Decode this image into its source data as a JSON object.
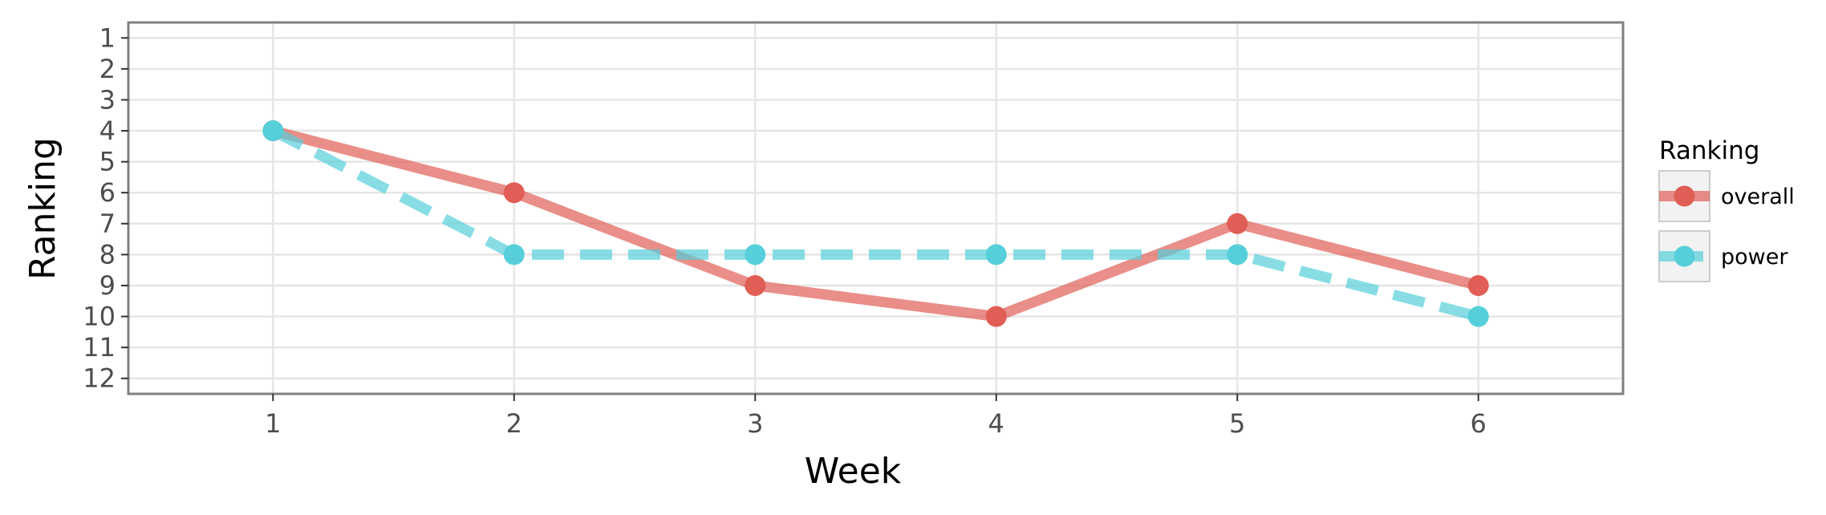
{
  "chart_data": {
    "type": "line",
    "xlabel": "Week",
    "ylabel": "Ranking",
    "x": [
      1,
      2,
      3,
      4,
      5,
      6
    ],
    "xlim": [
      0.4,
      6.6
    ],
    "ylim": [
      12.5,
      0.5
    ],
    "y_reversed": true,
    "x_ticks": [
      "1",
      "2",
      "3",
      "4",
      "5",
      "6"
    ],
    "y_ticks": [
      "1",
      "2",
      "3",
      "4",
      "5",
      "6",
      "7",
      "8",
      "9",
      "10",
      "11",
      "12"
    ],
    "grid": true,
    "legend": {
      "title": "Ranking",
      "placement": "right"
    },
    "series": [
      {
        "name": "overall",
        "values": [
          4,
          6,
          9,
          10,
          7,
          9
        ],
        "color": "#e05e55",
        "linestyle": "solid"
      },
      {
        "name": "power",
        "values": [
          4,
          8,
          8,
          8,
          8,
          10
        ],
        "color": "#56cfda",
        "linestyle": "dashed"
      }
    ]
  }
}
